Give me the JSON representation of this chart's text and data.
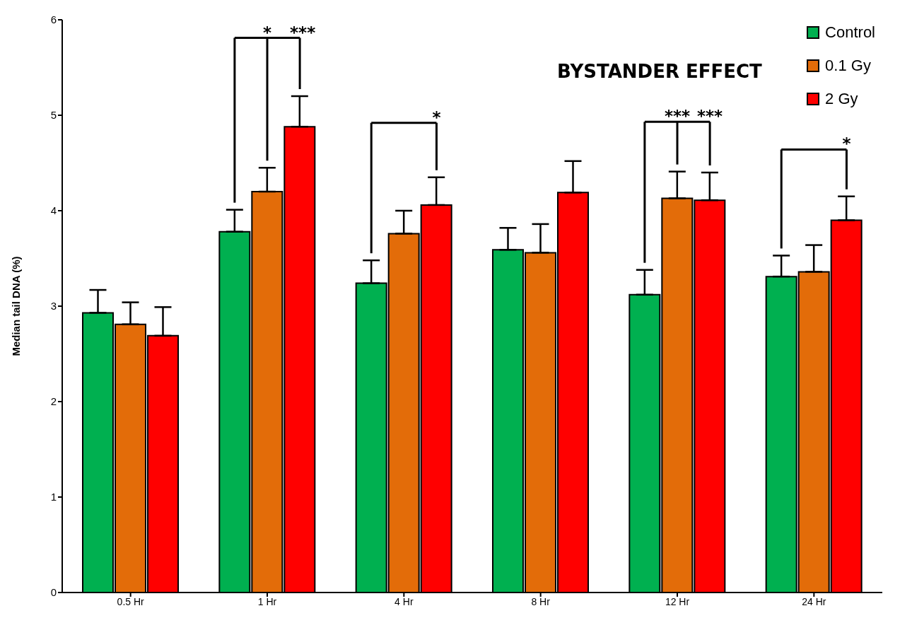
{
  "chart_data": {
    "type": "bar",
    "title": "BYSTANDER EFFECT",
    "ylabel": "Median tail DNA (%)",
    "categories": [
      "0.5 Hr",
      "1 Hr",
      "4 Hr",
      "8 Hr",
      "12 Hr",
      "24 Hr"
    ],
    "series": [
      {
        "name": "Control",
        "color": "#00b050",
        "values": [
          2.93,
          3.78,
          3.24,
          3.59,
          3.12,
          3.31
        ],
        "errors": [
          [
            2.93,
            3.17
          ],
          [
            3.78,
            4.01
          ],
          [
            3.24,
            3.48
          ],
          [
            3.59,
            3.82
          ],
          [
            3.12,
            3.38
          ],
          [
            3.31,
            3.53
          ]
        ]
      },
      {
        "name": "0.1 Gy",
        "color": "#e36c09",
        "values": [
          2.81,
          4.2,
          3.76,
          3.56,
          4.13,
          3.36
        ],
        "errors": [
          [
            2.81,
            3.04
          ],
          [
            4.2,
            4.45
          ],
          [
            3.76,
            4.0
          ],
          [
            3.56,
            3.86
          ],
          [
            4.13,
            4.41
          ],
          [
            3.36,
            3.64
          ]
        ]
      },
      {
        "name": "2 Gy",
        "color": "#ff0000",
        "values": [
          2.69,
          4.88,
          4.06,
          4.19,
          4.11,
          3.9
        ],
        "errors": [
          [
            2.69,
            2.99
          ],
          [
            4.88,
            5.2
          ],
          [
            4.06,
            4.35
          ],
          [
            4.19,
            4.52
          ],
          [
            4.11,
            4.4
          ],
          [
            3.9,
            4.15
          ]
        ]
      }
    ],
    "ylim": [
      0,
      6
    ],
    "yticks": [
      0,
      1,
      2,
      3,
      4,
      5,
      6
    ],
    "grid": false,
    "legend": "top right",
    "annotations": [
      "* ***",
      "*",
      "***",
      "***",
      "*"
    ]
  }
}
